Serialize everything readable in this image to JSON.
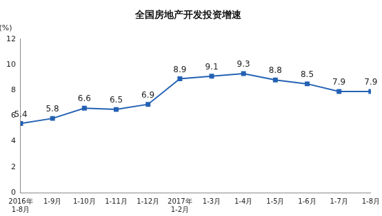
{
  "chart_data": {
    "type": "line",
    "title": "全国房地产开发投资增速",
    "y_label": "(%)",
    "categories": [
      "2016年\n1-8月",
      "1-9月",
      "1-10月",
      "1-11月",
      "1-12月",
      "2017年\n1-2月",
      "1-3月",
      "1-4月",
      "1-5月",
      "1-6月",
      "1-7月",
      "1-8月"
    ],
    "values": [
      5.4,
      5.8,
      6.6,
      6.5,
      6.9,
      8.9,
      9.1,
      9.3,
      8.8,
      8.5,
      7.9,
      7.9
    ],
    "color": "#2361b3",
    "marker": "square",
    "ylim": [
      0,
      12
    ],
    "yticks": [
      0,
      2,
      4,
      6,
      8,
      10,
      12
    ],
    "grid": false,
    "data_labels": true
  }
}
